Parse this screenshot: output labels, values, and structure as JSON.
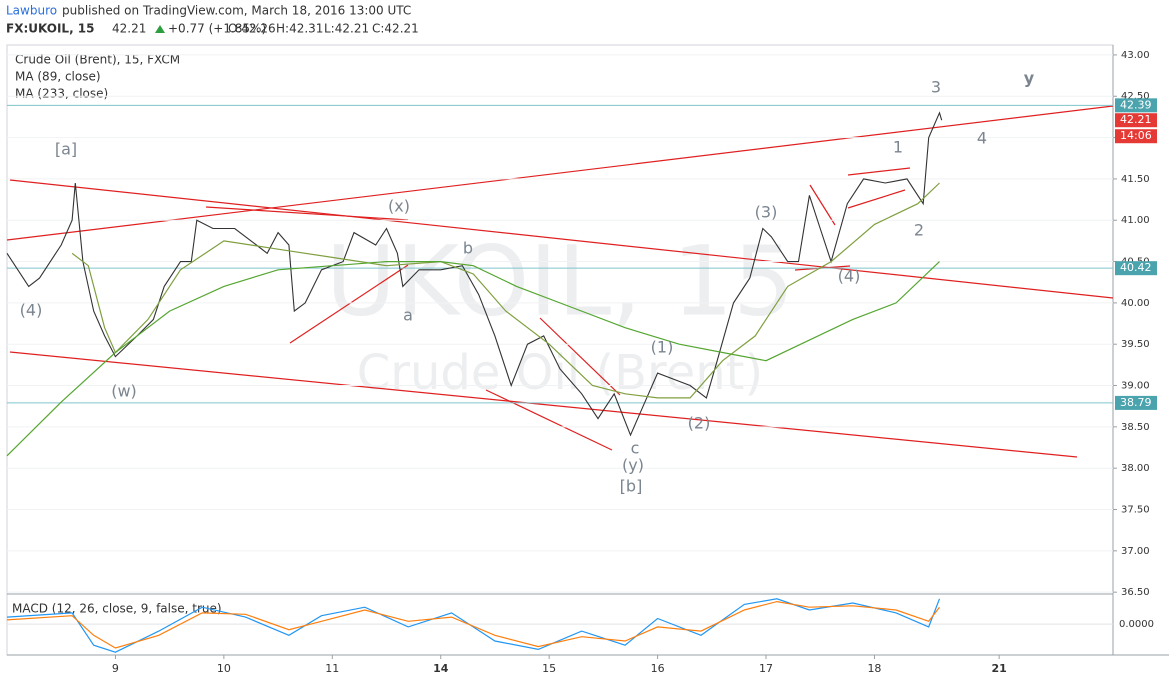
{
  "header": {
    "author": "Lawburo",
    "published": "published on TradingView.com, March 18, 2016 13:00 UTC",
    "symbol": "FX:UKOIL, 15",
    "last": "42.21",
    "change": "+0.77 (+1.85%)",
    "ohlc": [
      "O:42.26",
      "H:42.31",
      "L:42.21",
      "C:42.21"
    ]
  },
  "chart_data": {
    "type": "line",
    "legend": [
      "Crude Oil (Brent), 15, FXCM",
      "MA (89, close)",
      "MA (233, close)"
    ],
    "watermark": [
      "UKOIL, 15",
      "Crude Oil (Brent)"
    ],
    "xlim": [
      0,
      10.2
    ],
    "xticks": [
      {
        "value": 1,
        "label": "9"
      },
      {
        "value": 2,
        "label": "10"
      },
      {
        "value": 3,
        "label": "11"
      },
      {
        "value": 4,
        "label": "14"
      },
      {
        "value": 5,
        "label": "15"
      },
      {
        "value": 6,
        "label": "16"
      },
      {
        "value": 7,
        "label": "17"
      },
      {
        "value": 8,
        "label": "18"
      },
      {
        "value": 9.15,
        "label": "21"
      }
    ],
    "ylim": [
      36.49,
      43.12
    ],
    "yticks": [
      {
        "value": 36.5,
        "label": "36.50"
      },
      {
        "value": 37,
        "label": "37.00"
      },
      {
        "value": 37.5,
        "label": "37.50"
      },
      {
        "value": 38,
        "label": "38.00"
      },
      {
        "value": 38.5,
        "label": "38.50"
      },
      {
        "value": 39,
        "label": "39.00"
      },
      {
        "value": 39.5,
        "label": "39.50"
      },
      {
        "value": 40,
        "label": "40.00"
      },
      {
        "value": 40.5,
        "label": "40.50"
      },
      {
        "value": 41,
        "label": "41.00"
      },
      {
        "value": 41.5,
        "label": "41.50"
      },
      {
        "value": 42,
        "label": "42.00"
      },
      {
        "value": 42.5,
        "label": "42.50"
      },
      {
        "value": 43,
        "label": "43.00"
      }
    ],
    "series": [
      {
        "name": "Crude Oil (Brent), 15, FXCM",
        "color": "#333333",
        "x": [
          0,
          0.2,
          0.3,
          0.5,
          0.6,
          0.63,
          0.7,
          0.8,
          0.9,
          1.0,
          1.2,
          1.35,
          1.45,
          1.6,
          1.7,
          1.75,
          1.9,
          2.1,
          2.3,
          2.4,
          2.5,
          2.6,
          2.65,
          2.75,
          2.9,
          3.1,
          3.2,
          3.4,
          3.5,
          3.6,
          3.65,
          3.8,
          4.0,
          4.2,
          4.35,
          4.5,
          4.65,
          4.8,
          4.95,
          5.1,
          5.3,
          5.45,
          5.6,
          5.75,
          5.85,
          6.0,
          6.3,
          6.45,
          6.55,
          6.7,
          6.85,
          6.97,
          7.05,
          7.2,
          7.3,
          7.4,
          7.5,
          7.6,
          7.75,
          7.9,
          8.1,
          8.3,
          8.45,
          8.5,
          8.6,
          8.62
        ],
        "values": [
          40.6,
          40.2,
          40.3,
          40.7,
          41.0,
          41.45,
          40.5,
          39.9,
          39.6,
          39.35,
          39.6,
          39.8,
          40.2,
          40.5,
          40.5,
          41.0,
          40.9,
          40.9,
          40.7,
          40.6,
          40.85,
          40.7,
          39.9,
          40.0,
          40.4,
          40.5,
          40.85,
          40.7,
          40.9,
          40.6,
          40.2,
          40.4,
          40.4,
          40.45,
          40.1,
          39.6,
          39.0,
          39.5,
          39.6,
          39.2,
          38.9,
          38.6,
          38.9,
          38.4,
          38.7,
          39.15,
          39.0,
          38.85,
          39.3,
          40.0,
          40.3,
          40.9,
          40.8,
          40.5,
          40.5,
          41.3,
          40.9,
          40.5,
          41.2,
          41.5,
          41.45,
          41.5,
          41.2,
          42.0,
          42.3,
          42.21
        ]
      },
      {
        "name": "MA (89, close)",
        "color": "#7f9f3f",
        "x": [
          0.6,
          0.75,
          0.9,
          1.0,
          1.3,
          1.6,
          2.0,
          2.5,
          3.0,
          3.5,
          4.0,
          4.3,
          4.6,
          5.0,
          5.4,
          5.7,
          6.0,
          6.3,
          6.6,
          6.9,
          7.2,
          7.6,
          8.0,
          8.4,
          8.6
        ],
        "values": [
          40.6,
          40.45,
          39.7,
          39.4,
          39.8,
          40.4,
          40.75,
          40.65,
          40.55,
          40.45,
          40.5,
          40.35,
          39.9,
          39.5,
          39.0,
          38.9,
          38.85,
          38.85,
          39.3,
          39.6,
          40.2,
          40.5,
          40.95,
          41.2,
          41.45
        ]
      },
      {
        "name": "MA (233, close)",
        "color": "#55a630",
        "x": [
          0,
          0.5,
          1.0,
          1.5,
          2.0,
          2.5,
          3.0,
          3.5,
          4.0,
          4.3,
          4.7,
          5.2,
          5.7,
          6.2,
          6.6,
          7.0,
          7.4,
          7.8,
          8.2,
          8.6
        ],
        "values": [
          38.15,
          38.8,
          39.4,
          39.9,
          40.2,
          40.4,
          40.45,
          40.5,
          40.5,
          40.45,
          40.2,
          39.95,
          39.7,
          39.5,
          39.4,
          39.3,
          39.55,
          39.8,
          40.0,
          40.5
        ]
      }
    ],
    "price_lines": [
      {
        "value": 42.39,
        "label": "42.39"
      },
      {
        "value": 40.42,
        "label": "40.42"
      },
      {
        "value": 38.79,
        "label": "38.79"
      }
    ],
    "last_price": 42.21,
    "countdown": "14:06",
    "annotations": [
      "[a]",
      "(4)",
      "(w)",
      "(x)",
      "a",
      "b",
      "c",
      "(y)",
      "[b]",
      "(1)",
      "(2)",
      "(3)",
      "(4)",
      "1",
      "2",
      "3",
      "4",
      "y"
    ],
    "macd": {
      "label": "MACD (12, 26, close, 9, false, true)",
      "ylim": [
        -0.22,
        0.2
      ],
      "yticks": [
        {
          "value": 0,
          "label": "0.0000"
        }
      ],
      "series": [
        {
          "name": "MACD",
          "color": "#2196f3",
          "x": [
            0,
            0.6,
            0.8,
            1.0,
            1.4,
            1.8,
            2.2,
            2.6,
            2.9,
            3.3,
            3.7,
            4.1,
            4.5,
            4.9,
            5.3,
            5.7,
            6.0,
            6.4,
            6.8,
            7.1,
            7.4,
            7.8,
            8.2,
            8.5,
            8.6
          ],
          "values": [
            0.05,
            0.08,
            -0.15,
            -0.2,
            -0.05,
            0.12,
            0.05,
            -0.08,
            0.06,
            0.12,
            -0.02,
            0.08,
            -0.12,
            -0.18,
            -0.05,
            -0.15,
            0.04,
            -0.08,
            0.14,
            0.18,
            0.1,
            0.15,
            0.08,
            -0.02,
            0.18
          ]
        },
        {
          "name": "Signal",
          "color": "#ff7f0e",
          "x": [
            0,
            0.6,
            0.8,
            1.0,
            1.4,
            1.8,
            2.2,
            2.6,
            2.9,
            3.3,
            3.7,
            4.1,
            4.5,
            4.9,
            5.3,
            5.7,
            6.0,
            6.4,
            6.8,
            7.1,
            7.4,
            7.8,
            8.2,
            8.5,
            8.6
          ],
          "values": [
            0.03,
            0.06,
            -0.08,
            -0.17,
            -0.08,
            0.08,
            0.07,
            -0.04,
            0.02,
            0.1,
            0.02,
            0.05,
            -0.08,
            -0.16,
            -0.09,
            -0.12,
            -0.02,
            -0.05,
            0.1,
            0.16,
            0.12,
            0.13,
            0.1,
            0.02,
            0.12
          ]
        }
      ]
    }
  }
}
